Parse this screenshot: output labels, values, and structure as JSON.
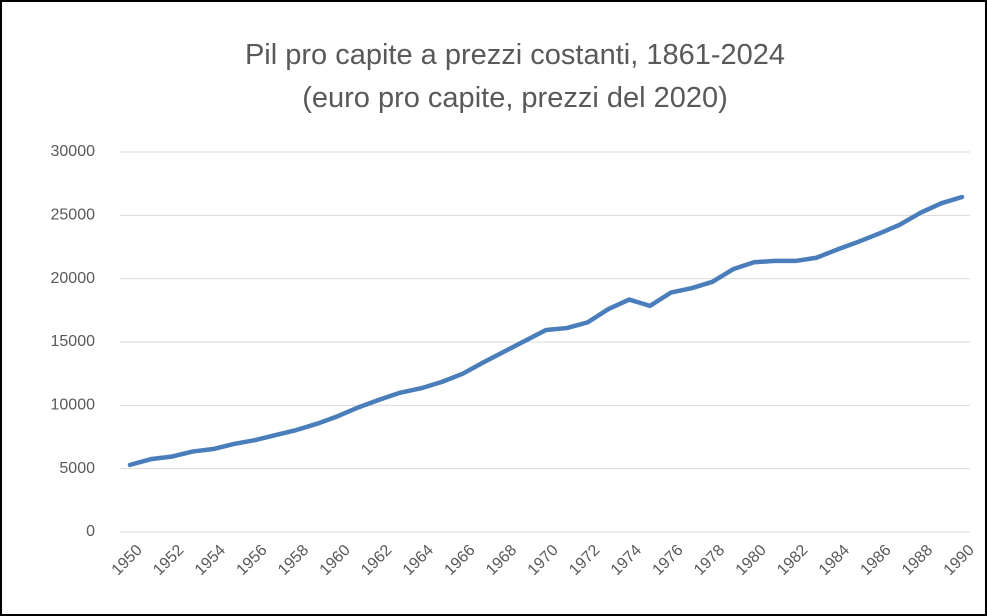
{
  "chart_data": {
    "type": "line",
    "title": "Pil pro capite a prezzi costanti, 1861-2024",
    "subtitle": "(euro pro capite, prezzi del 2020)",
    "categories": [
      "1950",
      null,
      "1952",
      null,
      "1954",
      null,
      "1956",
      null,
      "1958",
      null,
      "1960",
      null,
      "1962",
      null,
      "1964",
      null,
      "1966",
      null,
      "1968",
      null,
      "1970",
      null,
      "1972",
      null,
      "1974",
      null,
      "1976",
      null,
      "1978",
      null,
      "1980",
      null,
      "1982",
      null,
      "1984",
      null,
      "1986",
      null,
      "1988",
      null,
      "1990"
    ],
    "values": [
      5300,
      5750,
      5950,
      6350,
      6550,
      6950,
      7250,
      7650,
      8050,
      8550,
      9150,
      9850,
      10450,
      11000,
      11350,
      11850,
      12500,
      13400,
      14250,
      15100,
      15950,
      16100,
      16550,
      17600,
      18350,
      17850,
      18900,
      19250,
      19750,
      20750,
      21300,
      21400,
      21400,
      21650,
      22300,
      22900,
      23550,
      24250,
      25200,
      25950,
      26450
    ],
    "color": "#4a7ebb",
    "ylim": [
      0,
      30000
    ],
    "yticks": [
      0,
      5000,
      10000,
      15000,
      20000,
      25000,
      30000
    ],
    "grid": true
  }
}
